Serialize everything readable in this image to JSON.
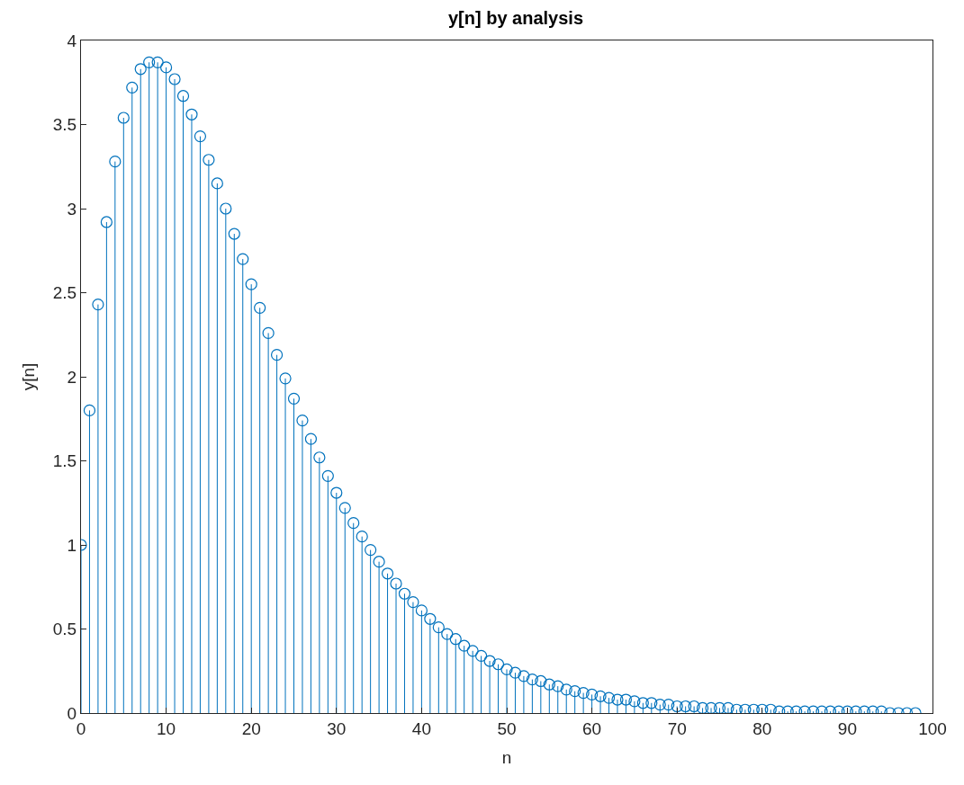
{
  "chart_data": {
    "type": "lollipop",
    "title": "y[n] by analysis",
    "xlabel": "n",
    "ylabel": "y[n]",
    "x": [
      0,
      1,
      2,
      3,
      4,
      5,
      6,
      7,
      8,
      9,
      10,
      11,
      12,
      13,
      14,
      15,
      16,
      17,
      18,
      19,
      20,
      21,
      22,
      23,
      24,
      25,
      26,
      27,
      28,
      29,
      30,
      31,
      32,
      33,
      34,
      35,
      36,
      37,
      38,
      39,
      40,
      41,
      42,
      43,
      44,
      45,
      46,
      47,
      48,
      49,
      50,
      51,
      52,
      53,
      54,
      55,
      56,
      57,
      58,
      59,
      60,
      61,
      62,
      63,
      64,
      65,
      66,
      67,
      68,
      69,
      70,
      71,
      72,
      73,
      74,
      75,
      76,
      77,
      78,
      79,
      80,
      81,
      82,
      83,
      84,
      85,
      86,
      87,
      88,
      89,
      90,
      91,
      92,
      93,
      94,
      95,
      96,
      97,
      98
    ],
    "values": [
      1,
      1.8,
      2.43,
      2.92,
      3.28,
      3.54,
      3.72,
      3.83,
      3.87,
      3.87,
      3.84,
      3.77,
      3.67,
      3.56,
      3.43,
      3.29,
      3.15,
      3.0,
      2.85,
      2.7,
      2.55,
      2.41,
      2.26,
      2.13,
      1.99,
      1.87,
      1.74,
      1.63,
      1.52,
      1.41,
      1.31,
      1.22,
      1.13,
      1.05,
      0.97,
      0.9,
      0.83,
      0.77,
      0.71,
      0.66,
      0.61,
      0.56,
      0.51,
      0.47,
      0.44,
      0.4,
      0.37,
      0.34,
      0.31,
      0.29,
      0.26,
      0.24,
      0.22,
      0.2,
      0.19,
      0.17,
      0.16,
      0.14,
      0.13,
      0.12,
      0.11,
      0.1,
      0.09,
      0.08,
      0.08,
      0.07,
      0.06,
      0.06,
      0.05,
      0.05,
      0.04,
      0.04,
      0.04,
      0.03,
      0.03,
      0.03,
      0.03,
      0.02,
      0.02,
      0.02,
      0.02,
      0.02,
      0.01,
      0.01,
      0.01,
      0.01,
      0.01,
      0.01,
      0.01,
      0.01,
      0.01,
      0.01,
      0.01,
      0.01,
      0.01,
      0,
      0,
      0,
      0
    ],
    "color": "#0072bd",
    "marker": "circle",
    "xlim": [
      0,
      100
    ],
    "xticks": [
      0,
      10,
      20,
      30,
      40,
      50,
      60,
      70,
      80,
      90,
      100
    ],
    "ylim": [
      0,
      4
    ],
    "yticks": [
      0,
      0.5,
      1,
      1.5,
      2,
      2.5,
      3,
      3.5,
      4
    ]
  }
}
